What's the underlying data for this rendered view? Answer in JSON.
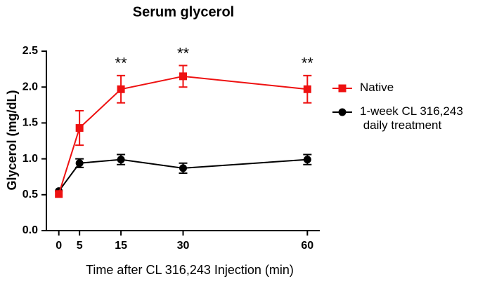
{
  "chart_data": {
    "type": "line",
    "title": "Serum glycerol",
    "x_label": "Time after CL 316,243 Injection (min)",
    "y_label": "Glycerol (mg/dL)",
    "xlim": [
      -3,
      63
    ],
    "xticks": [
      0,
      5,
      15,
      30,
      60
    ],
    "ylim": [
      0,
      2.5
    ],
    "yticks": [
      0.0,
      0.5,
      1.0,
      1.5,
      2.0,
      2.5
    ],
    "x": [
      0,
      5,
      15,
      30,
      60
    ],
    "series": [
      {
        "name": "Native",
        "color": "#ee1111",
        "marker": "square",
        "values": [
          0.51,
          1.43,
          1.97,
          2.15,
          1.97
        ],
        "errors": [
          0,
          0.24,
          0.19,
          0.15,
          0.19
        ]
      },
      {
        "name": "1-week CL 316,243\n daily treatment",
        "color": "#000000",
        "marker": "circle",
        "values": [
          0.55,
          0.94,
          0.99,
          0.87,
          0.99
        ],
        "errors": [
          0,
          0.06,
          0.07,
          0.07,
          0.07
        ]
      }
    ],
    "annotations": [
      {
        "x": 15,
        "text": "**"
      },
      {
        "x": 30,
        "text": "**"
      },
      {
        "x": 60,
        "text": "**"
      }
    ],
    "legend": "right"
  }
}
